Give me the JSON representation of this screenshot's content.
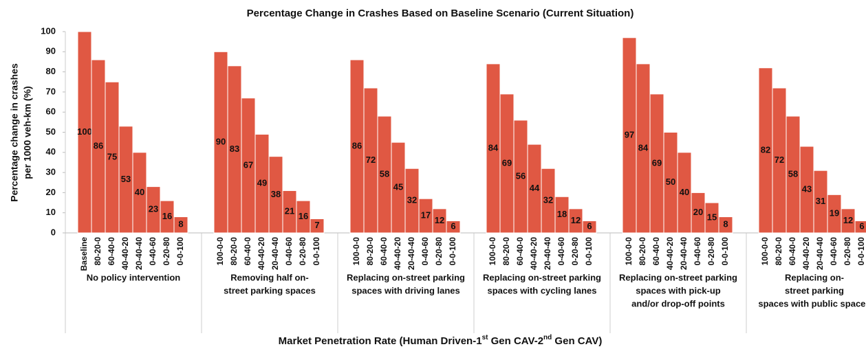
{
  "chart_data": {
    "type": "bar",
    "title": "Percentage Change in Crashes Based on Baseline Scenario (Current Situation)",
    "y_label": [
      "Percentage change in crashes",
      "per 1000 veh-km (%)"
    ],
    "x_label": [
      "Market Penetration Rate (Human Driven-1",
      "st",
      " Gen CAV-2",
      "nd",
      " Gen CAV)"
    ],
    "color": "#e05843",
    "ylim": [
      0,
      100
    ],
    "yticks": [
      0,
      10,
      20,
      30,
      40,
      50,
      60,
      70,
      80,
      90,
      100
    ],
    "groups": [
      {
        "label": [
          "No policy intervention"
        ],
        "categories": [
          "Baseline",
          "80-20-0",
          "60-40-0",
          "40-40-20",
          "20-40-40",
          "0-40-60",
          "0-20-80",
          "0-0-100"
        ],
        "values": [
          100,
          86,
          75,
          53,
          40,
          23,
          16,
          8
        ]
      },
      {
        "label": [
          "Removing half on-",
          "street parking spaces"
        ],
        "categories": [
          "100-0-0",
          "80-20-0",
          "60-40-0",
          "40-40-20",
          "20-40-40",
          "0-40-60",
          "0-20-80",
          "0-0-100"
        ],
        "values": [
          90,
          83,
          67,
          49,
          38,
          21,
          16,
          7
        ]
      },
      {
        "label": [
          "Replacing on-street parking",
          "spaces with driving lanes"
        ],
        "categories": [
          "100-0-0",
          "80-20-0",
          "60-40-0",
          "40-40-20",
          "20-40-40",
          "0-40-60",
          "0-20-80",
          "0-0-100"
        ],
        "values": [
          86,
          72,
          58,
          45,
          32,
          17,
          12,
          6
        ]
      },
      {
        "label": [
          "Replacing on-street parking",
          "spaces with cycling lanes"
        ],
        "categories": [
          "100-0-0",
          "80-20-0",
          "60-40-0",
          "40-40-20",
          "20-40-40",
          "0-40-60",
          "0-20-80",
          "0-0-100"
        ],
        "values": [
          84,
          69,
          56,
          44,
          32,
          18,
          12,
          6
        ]
      },
      {
        "label": [
          "Replacing on-street parking",
          "spaces with pick-up",
          "and/or drop-off points"
        ],
        "categories": [
          "100-0-0",
          "80-20-0",
          "60-40-0",
          "40-40-20",
          "20-40-40",
          "0-40-60",
          "0-20-80",
          "0-0-100"
        ],
        "values": [
          97,
          84,
          69,
          50,
          40,
          20,
          15,
          8
        ]
      },
      {
        "label": [
          "Replacing on-",
          "street parking",
          "spaces with public spaces"
        ],
        "categories": [
          "100-0-0",
          "80-20-0",
          "60-40-0",
          "40-40-20",
          "20-40-40",
          "0-40-60",
          "0-20-80",
          "0-0-100"
        ],
        "values": [
          82,
          72,
          58,
          43,
          31,
          19,
          12,
          6
        ]
      }
    ]
  }
}
